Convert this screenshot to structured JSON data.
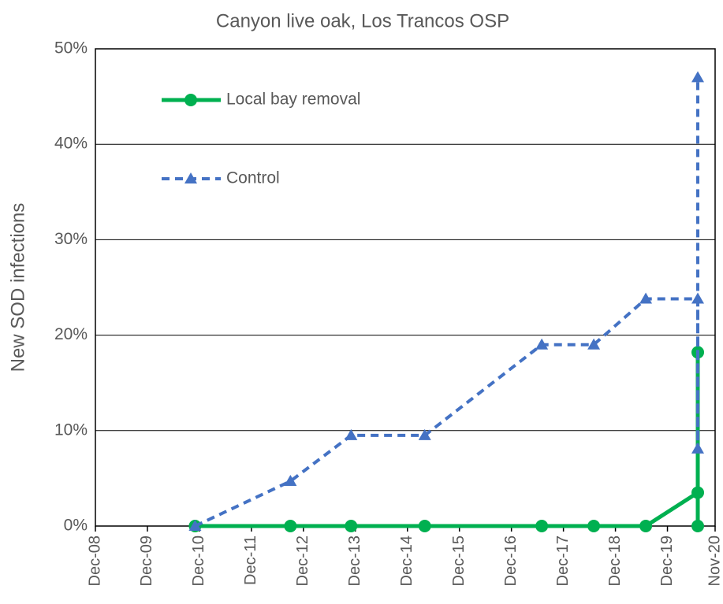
{
  "chart_data": {
    "type": "line",
    "title": "Canyon live oak, Los Trancos OSP",
    "y_label": "New SOD infections",
    "x": [
      "Nov-10",
      "Sep-12",
      "Nov-13",
      "Apr-15",
      "Jul-17",
      "Jul-18",
      "Jul-19",
      "Jul-20",
      "Jul-20",
      "Jul-20"
    ],
    "series": [
      {
        "name": "Local bay removal",
        "color": "#00b050",
        "marker": "circle",
        "dashed": false,
        "values": [
          0,
          0,
          0,
          0,
          0,
          0,
          0,
          3.5,
          18.2,
          0
        ]
      },
      {
        "name": "Control",
        "color": "#4472c4",
        "marker": "triangle",
        "dashed": true,
        "values": [
          0,
          4.7,
          9.5,
          9.5,
          19,
          19,
          23.8,
          23.8,
          8.1,
          47
        ]
      }
    ],
    "xlim": [
      "Dec-08",
      "Nov-20"
    ],
    "xticks": [
      "Dec-08",
      "Dec-09",
      "Dec-10",
      "Dec-11",
      "Dec-12",
      "Dec-13",
      "Dec-14",
      "Dec-15",
      "Dec-16",
      "Dec-17",
      "Dec-18",
      "Dec-19",
      "Nov-20"
    ],
    "ylim": [
      0,
      50
    ],
    "yticks": [
      {
        "value": 0,
        "label": "0%"
      },
      {
        "value": 10,
        "label": "10%"
      },
      {
        "value": 20,
        "label": "20%"
      },
      {
        "value": 30,
        "label": "30%"
      },
      {
        "value": 40,
        "label": "40%"
      },
      {
        "value": 50,
        "label": "50%"
      }
    ],
    "grid": true,
    "legend": "upper left"
  }
}
